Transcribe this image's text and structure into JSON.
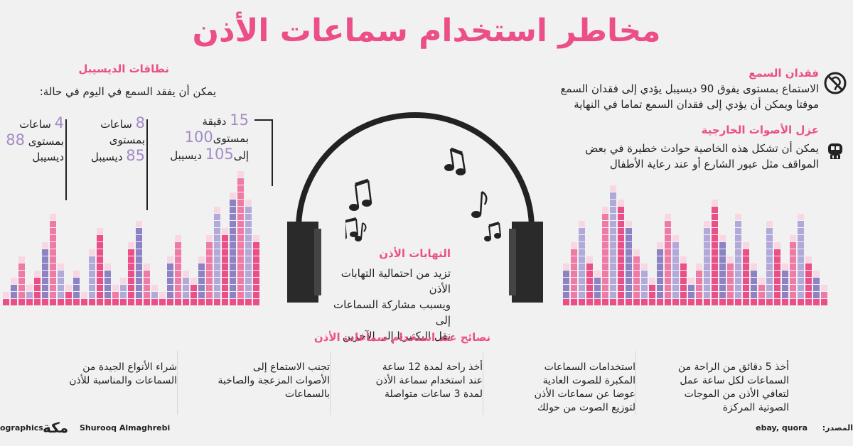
{
  "title": "مخاطر استخدام سماعات الأذن",
  "hearing_loss": {
    "heading": "فقدان السمع",
    "lines": [
      "الاستماع بمستوى يفوق 90 ديسيبل يؤدي إلى فقدان السمع",
      "موقتا ويمكن أن يؤدي إلى فقدان السمع تماما في النهاية"
    ]
  },
  "external_isolation": {
    "heading": "عزل الأصوات الخارجية",
    "lines": [
      "يمكن أن تشكل هذه الخاصية حوادث خطيرة في بعض",
      "المواقف مثل عبور الشارع أو عند رعاية الأطفال"
    ]
  },
  "decibel": {
    "heading": "نطاقات الديسيبل",
    "intro": "يمكن أن يفقد السمع في اليوم في حالة:",
    "stats": [
      {
        "num1": "4",
        "unit1": "ساعات",
        "prefix": "بمستوى",
        "num2": "88",
        "suffix": "ديسيبل"
      },
      {
        "num1": "8",
        "unit1": "ساعات",
        "prefix": "بمستوى",
        "num2": "85",
        "suffix": "ديسيبل"
      },
      {
        "num1": "15",
        "unit1": "دقيقة",
        "prefix": "بمستوى",
        "num2": "100",
        "mid": "إلى",
        "num3": "105",
        "suffix": "ديسيبل"
      }
    ]
  },
  "ear_infection": {
    "heading": "التهابات الأذن",
    "lines": [
      "تزيد من احتمالية التهابات الأذن",
      "ويسبب مشاركة السماعات إلى",
      "نقل البكتيريا إلى الآخرين"
    ]
  },
  "tips": {
    "heading": "نصائح عند استخدام سماعات الأذن",
    "items": [
      "أخذ 5 دقائق من الراحة من السماعات لكل ساعة عمل لتعافي الأذن من الموجات الصوتية المركزة",
      "استخدامات السماعات المكبرة للصوت العادية عوضا عن سماعات الأذن لتوزيع الصوت من حولك",
      "أخذ راحة لمدة 12 ساعة عند استخدام سماعة الأذن لمدة 3 ساعات متواصلة",
      "تجنب الاستماع إلى الأصوات المزعجة والصاخبة بالسماعات",
      "شراء الأنواع الجيدة من السماعات والمناسبة للأذن"
    ]
  },
  "footer": {
    "left_brand": "ographics",
    "logo_text": "مكة",
    "author": "Shurooq Almaghrebi",
    "source_value": "ebay, quora",
    "source_label": "المصدر:"
  },
  "colors": {
    "pink": "#ec4f88",
    "pink_light": "#f07aa6",
    "purple": "#8c82c4",
    "purple_light": "#b2a9db",
    "pale": "#f8d7e3"
  },
  "icons": [
    "no-ear-icon",
    "skull-icon",
    "music-note-icon",
    "headphones-icon"
  ]
}
